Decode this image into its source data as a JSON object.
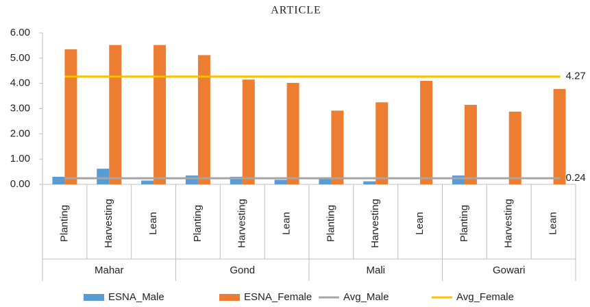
{
  "header": "ARTICLE",
  "chart_data": {
    "type": "bar",
    "categories": [
      "Planting",
      "Harvesting",
      "Lean",
      "Planting",
      "Harvesting",
      "Lean",
      "Planting",
      "Harvesting",
      "Lean",
      "Planting",
      "Harvesting",
      "Lean"
    ],
    "groups": [
      "Mahar",
      "Gond",
      "Mali",
      "Gowari"
    ],
    "series": [
      {
        "name": "ESNA_Male",
        "color": "#5b9bd5",
        "values": [
          0.3,
          0.62,
          0.15,
          0.35,
          0.3,
          0.18,
          0.22,
          0.12,
          0,
          0.35,
          0,
          0
        ]
      },
      {
        "name": "ESNA_Female",
        "color": "#ed7d31",
        "values": [
          5.35,
          5.52,
          5.52,
          5.12,
          4.15,
          4.02,
          2.92,
          3.25,
          4.1,
          3.15,
          2.88,
          3.78
        ]
      },
      {
        "name": "Avg_Male",
        "color": "#a5a5a5",
        "type": "line",
        "value": 0.24
      },
      {
        "name": "Avg_Female",
        "color": "#ffc000",
        "type": "line",
        "value": 4.27
      }
    ],
    "ylim": [
      0,
      6
    ],
    "yticks": [
      {
        "value": 0,
        "label": "0.00"
      },
      {
        "value": 1,
        "label": "1.00"
      },
      {
        "value": 2,
        "label": "2.00"
      },
      {
        "value": 3,
        "label": "3.00"
      },
      {
        "value": 4,
        "label": "4.00"
      },
      {
        "value": 5,
        "label": "5.00"
      },
      {
        "value": 6,
        "label": "6.00"
      }
    ],
    "legend": "bottom"
  }
}
